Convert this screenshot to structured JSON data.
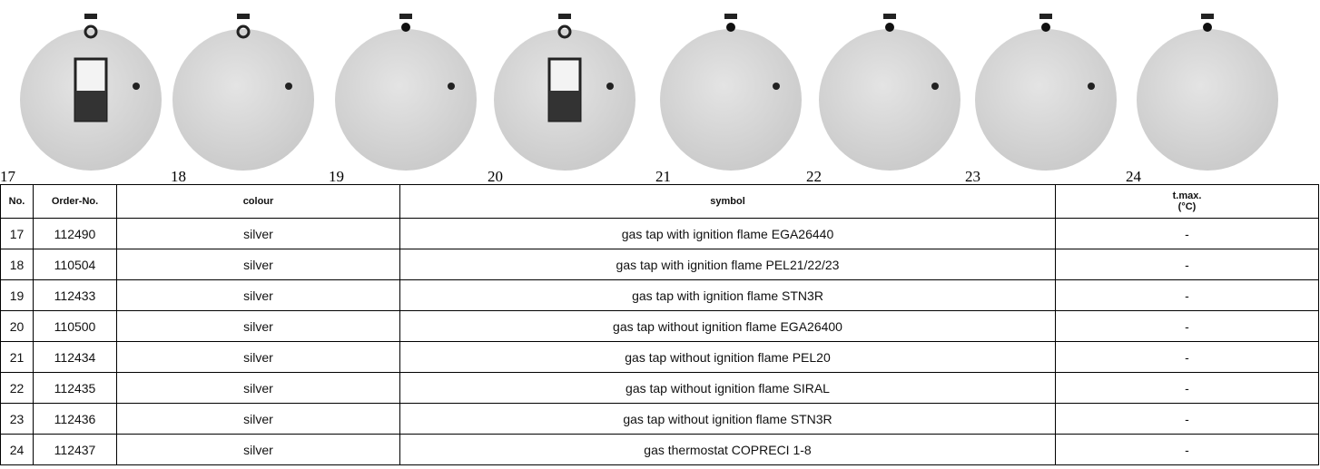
{
  "images": {
    "labels": [
      "17",
      "18",
      "19",
      "20",
      "21",
      "22",
      "23",
      "24"
    ]
  },
  "table": {
    "header": [
      "No.",
      "Order-No.",
      "colour",
      "symbol",
      "t.max.\n(°C)"
    ],
    "rows": [
      [
        "17",
        "112490",
        "silver",
        "gas tap with ignition flame EGA26440",
        "-"
      ],
      [
        "18",
        "110504",
        "silver",
        "gas tap with ignition flame PEL21/22/23",
        "-"
      ],
      [
        "19",
        "112433",
        "silver",
        "gas tap with ignition flame STN3R",
        "-"
      ],
      [
        "20",
        "110500",
        "silver",
        "gas tap without ignition flame EGA26400",
        "-"
      ],
      [
        "21",
        "112434",
        "silver",
        "gas tap without ignition flame PEL20",
        "-"
      ],
      [
        "22",
        "112435",
        "silver",
        "gas tap without ignition flame SIRAL",
        "-"
      ],
      [
        "23",
        "112436",
        "silver",
        "gas tap without ignition flame STN3R",
        "-"
      ],
      [
        "24",
        "112437",
        "silver",
        "gas thermostat COPRECI 1-8",
        "-"
      ]
    ]
  }
}
